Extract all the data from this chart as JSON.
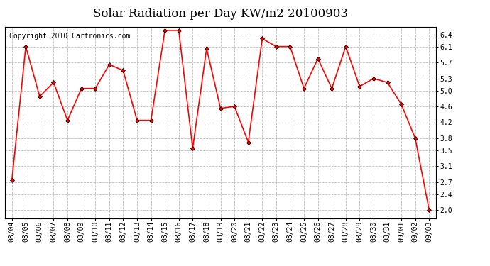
{
  "title": "Solar Radiation per Day KW/m2 20100903",
  "copyright": "Copyright 2010 Cartronics.com",
  "dates": [
    "08/04",
    "08/05",
    "08/06",
    "08/07",
    "08/08",
    "08/09",
    "08/10",
    "08/11",
    "08/12",
    "08/13",
    "08/14",
    "08/15",
    "08/16",
    "08/17",
    "08/18",
    "08/19",
    "08/20",
    "08/21",
    "08/22",
    "08/23",
    "08/24",
    "08/25",
    "08/26",
    "08/27",
    "08/28",
    "08/29",
    "08/30",
    "08/31",
    "09/01",
    "09/02",
    "09/03"
  ],
  "values": [
    2.75,
    6.1,
    4.85,
    5.2,
    4.25,
    5.05,
    5.05,
    5.65,
    5.5,
    4.25,
    4.25,
    6.5,
    6.5,
    3.55,
    6.05,
    4.55,
    4.6,
    3.7,
    6.3,
    6.1,
    6.1,
    5.05,
    5.8,
    5.05,
    6.1,
    5.1,
    5.3,
    5.2,
    4.65,
    3.8,
    2.0
  ],
  "line_color": "#ff0000",
  "marker": "D",
  "marker_size": 3,
  "bg_color": "#ffffff",
  "grid_color": "#bbbbbb",
  "ylim": [
    1.8,
    6.6
  ],
  "yticks": [
    2.0,
    2.4,
    2.7,
    3.1,
    3.5,
    3.8,
    4.2,
    4.6,
    5.0,
    5.3,
    5.7,
    6.1,
    6.4
  ],
  "title_fontsize": 12,
  "copyright_fontsize": 7,
  "tick_fontsize": 7
}
